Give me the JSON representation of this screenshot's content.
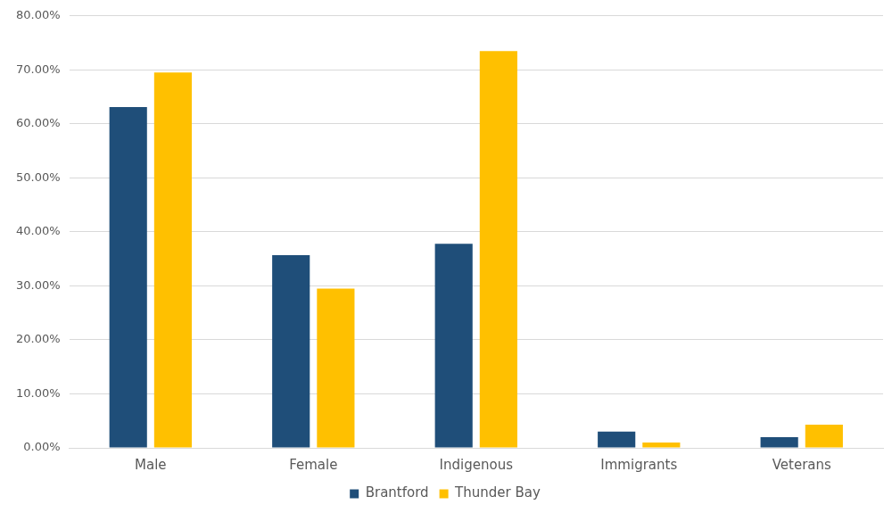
{
  "chart_data": {
    "type": "bar",
    "categories": [
      "Male",
      "Female",
      "Indigenous",
      "Immigrants",
      "Veterans"
    ],
    "series": [
      {
        "name": "Brantford",
        "color": "#1f4e79",
        "values": [
          63.1,
          35.7,
          37.8,
          3.0,
          2.0
        ]
      },
      {
        "name": "Thunder Bay",
        "color": "#ffc000",
        "values": [
          69.5,
          29.5,
          73.5,
          1.0,
          4.3
        ]
      }
    ],
    "ylim": [
      0,
      80
    ],
    "yticks": [
      {
        "value": 0,
        "label": "0.00%"
      },
      {
        "value": 10,
        "label": "10.00%"
      },
      {
        "value": 20,
        "label": "20.00%"
      },
      {
        "value": 30,
        "label": "30.00%"
      },
      {
        "value": 40,
        "label": "40.00%"
      },
      {
        "value": 50,
        "label": "50.00%"
      },
      {
        "value": 60,
        "label": "60.00%"
      },
      {
        "value": 70,
        "label": "70.00%"
      },
      {
        "value": 80,
        "label": "80.00%"
      }
    ],
    "grid": true,
    "legend": "bottom"
  }
}
